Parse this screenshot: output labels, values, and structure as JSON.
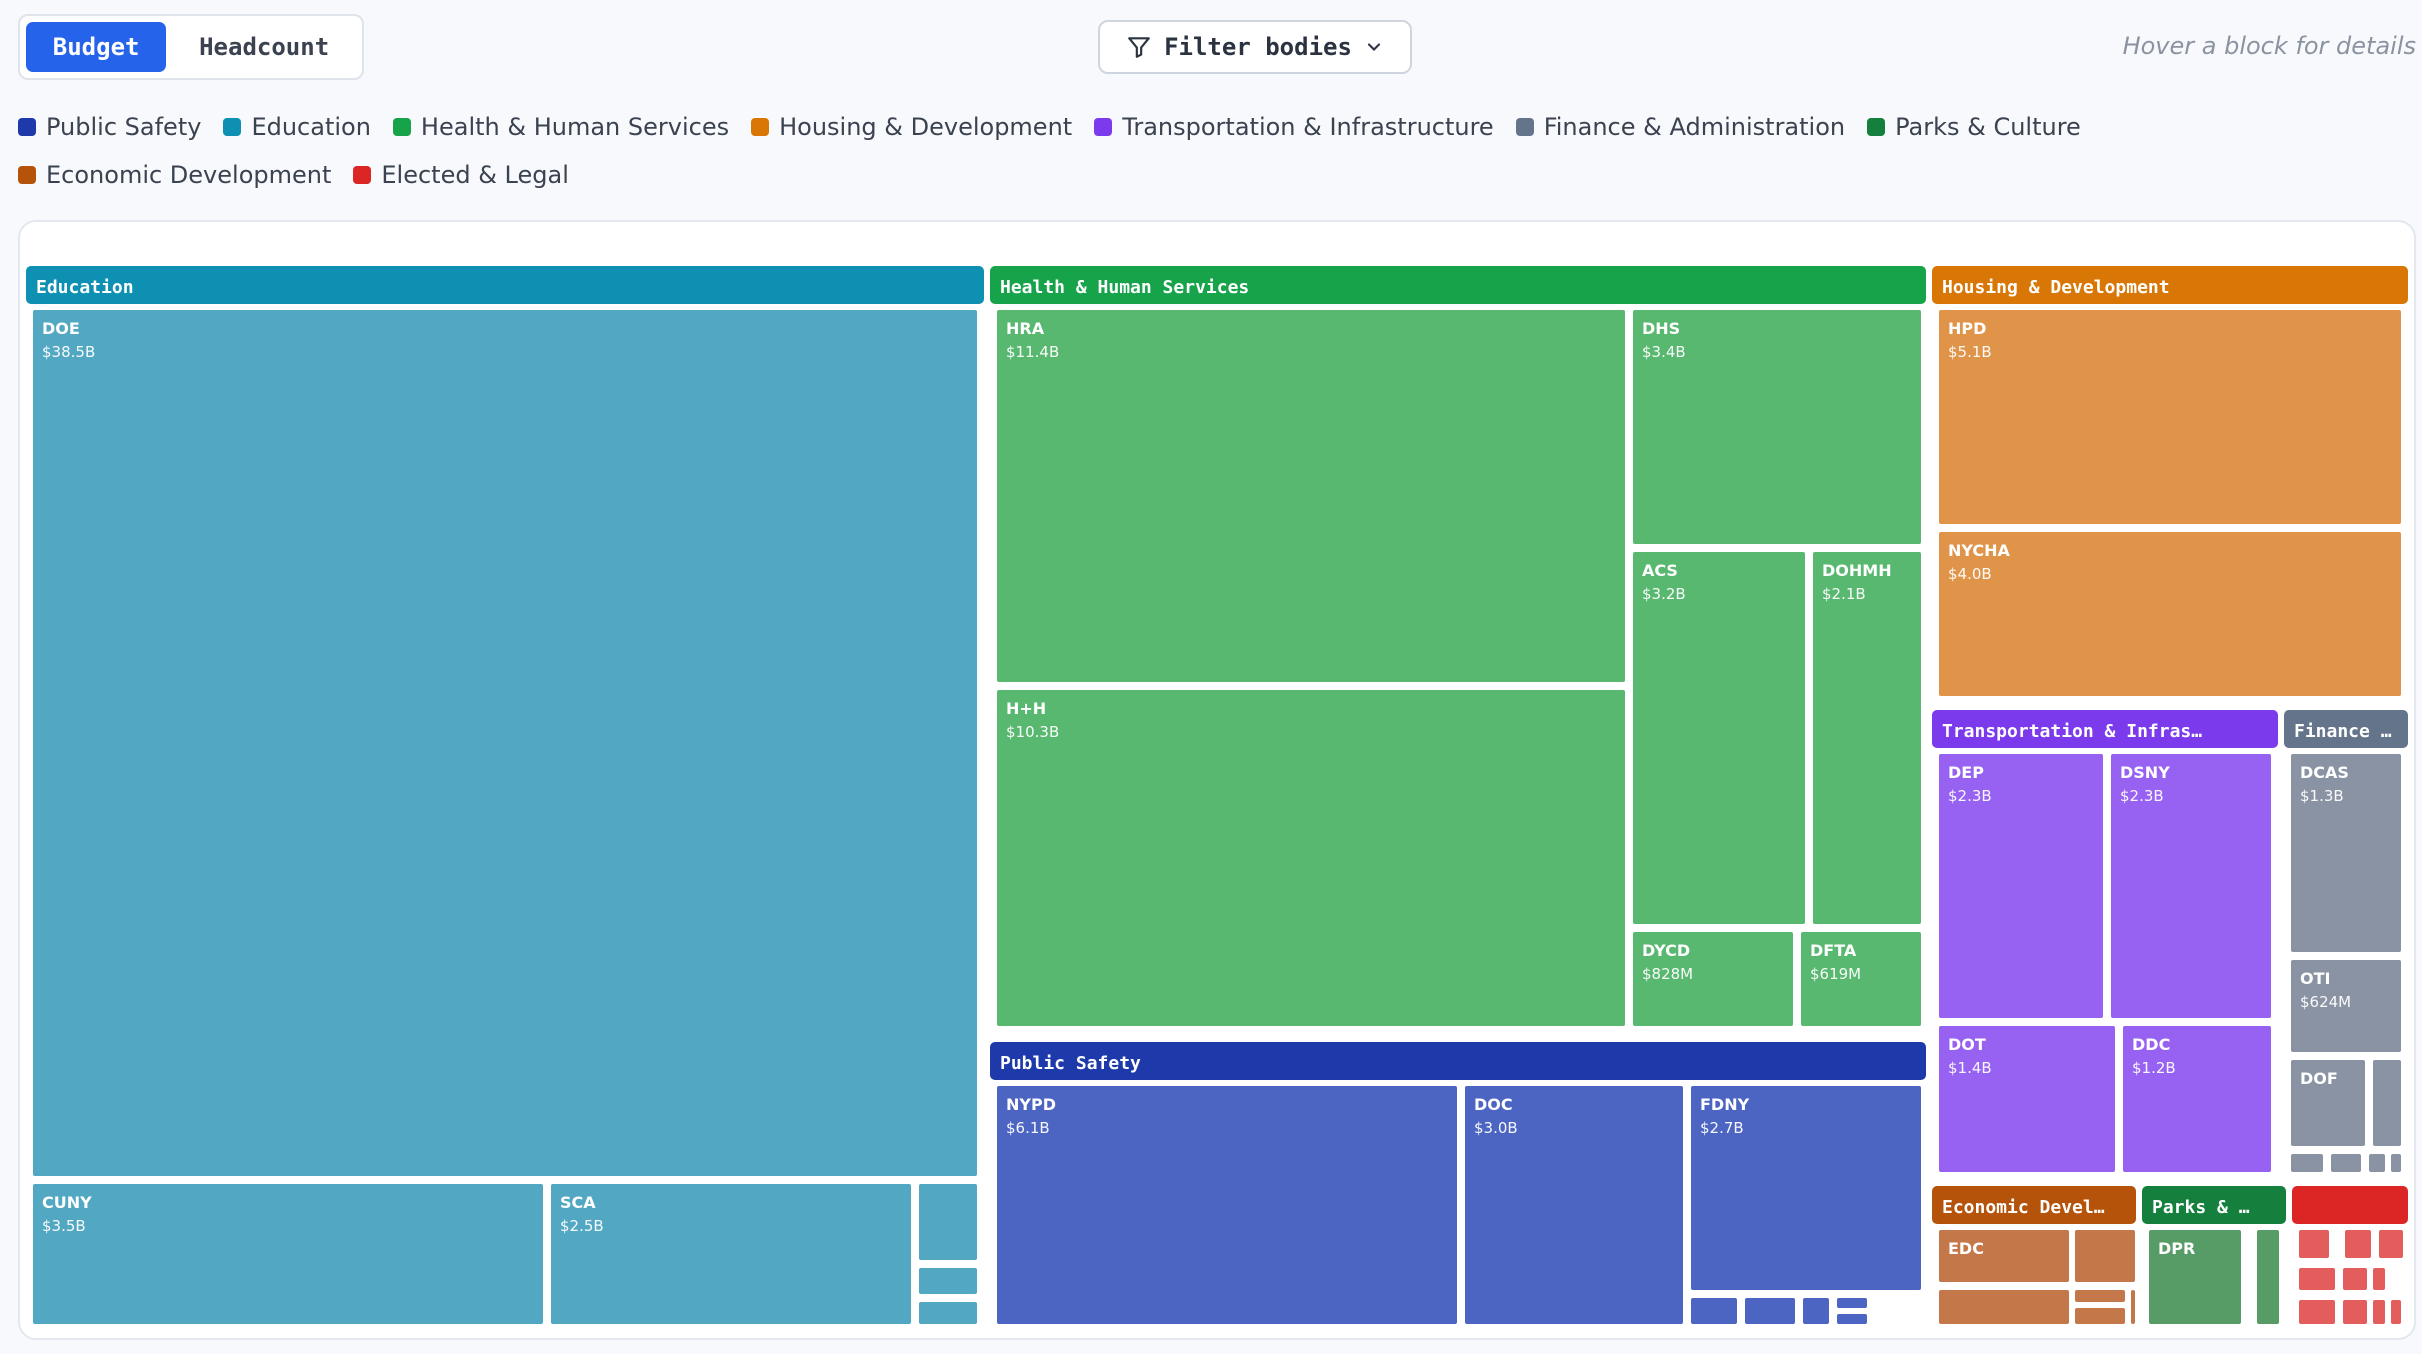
{
  "toggle": {
    "budget_label": "Budget",
    "headcount_label": "Headcount",
    "active": "budget"
  },
  "filter": {
    "label": "Filter bodies",
    "icon": "filter-icon"
  },
  "hint": "Hover a block for details",
  "legend": [
    {
      "label": "Public Safety",
      "color": "#1e3aaa"
    },
    {
      "label": "Education",
      "color": "#0e90b3"
    },
    {
      "label": "Health & Human Services",
      "color": "#16a34a"
    },
    {
      "label": "Housing & Development",
      "color": "#d97706"
    },
    {
      "label": "Transportation & Infrastructure",
      "color": "#7c3aed"
    },
    {
      "label": "Finance & Administration",
      "color": "#64748b"
    },
    {
      "label": "Parks & Culture",
      "color": "#15803d"
    },
    {
      "label": "Economic Development",
      "color": "#b45309"
    },
    {
      "label": "Elected & Legal",
      "color": "#dc2626"
    }
  ],
  "chart_data": {
    "type": "treemap",
    "metric": "Budget",
    "groups": [
      {
        "name": "Education",
        "color": "#0e90b3",
        "tile_color": "#52a7c3",
        "items": [
          {
            "name": "DOE",
            "value": "$38.5B",
            "v": 38.5
          },
          {
            "name": "CUNY",
            "value": "$3.5B",
            "v": 3.5
          },
          {
            "name": "SCA",
            "value": "$2.5B",
            "v": 2.5
          },
          {
            "name": "",
            "value": "",
            "v": 0.4
          },
          {
            "name": "",
            "value": "",
            "v": 0.12
          },
          {
            "name": "",
            "value": "",
            "v": 0.12
          }
        ]
      },
      {
        "name": "Health & Human Services",
        "color": "#16a34a",
        "tile_color": "#58b870",
        "items": [
          {
            "name": "HRA",
            "value": "$11.4B",
            "v": 11.4
          },
          {
            "name": "H+H",
            "value": "$10.3B",
            "v": 10.3
          },
          {
            "name": "DHS",
            "value": "$3.4B",
            "v": 3.4
          },
          {
            "name": "ACS",
            "value": "$3.2B",
            "v": 3.2
          },
          {
            "name": "DOHMH",
            "value": "$2.1B",
            "v": 2.1
          },
          {
            "name": "DYCD",
            "value": "$828M",
            "v": 0.828
          },
          {
            "name": "DFTA",
            "value": "$619M",
            "v": 0.619
          }
        ]
      },
      {
        "name": "Housing & Development",
        "color": "#d97706",
        "tile_color": "#e0944a",
        "items": [
          {
            "name": "HPD",
            "value": "$5.1B",
            "v": 5.1
          },
          {
            "name": "NYCHA",
            "value": "$4.0B",
            "v": 4.0
          }
        ]
      },
      {
        "name": "Transportation & Infras…",
        "color": "#7c3aed",
        "tile_color": "#9761f1",
        "items": [
          {
            "name": "DEP",
            "value": "$2.3B",
            "v": 2.3
          },
          {
            "name": "DSNY",
            "value": "$2.3B",
            "v": 2.3
          },
          {
            "name": "DOT",
            "value": "$1.4B",
            "v": 1.4
          },
          {
            "name": "DDC",
            "value": "$1.2B",
            "v": 1.2
          }
        ]
      },
      {
        "name": "Finance …",
        "color": "#64748b",
        "tile_color": "#8a93a3",
        "items": [
          {
            "name": "DCAS",
            "value": "$1.3B",
            "v": 1.3
          },
          {
            "name": "OTI",
            "value": "$624M",
            "v": 0.624
          },
          {
            "name": "DOF",
            "value": "",
            "v": 0.45
          },
          {
            "name": "",
            "value": "",
            "v": 0.1
          },
          {
            "name": "",
            "value": "",
            "v": 0.05
          },
          {
            "name": "",
            "value": "",
            "v": 0.05
          },
          {
            "name": "",
            "value": "",
            "v": 0.04
          },
          {
            "name": "",
            "value": "",
            "v": 0.03
          }
        ]
      },
      {
        "name": "Public Safety",
        "color": "#1e3aaa",
        "tile_color": "#4c64c2",
        "items": [
          {
            "name": "NYPD",
            "value": "$6.1B",
            "v": 6.1
          },
          {
            "name": "DOC",
            "value": "$3.0B",
            "v": 3.0
          },
          {
            "name": "FDNY",
            "value": "$2.7B",
            "v": 2.7
          },
          {
            "name": "",
            "value": "",
            "v": 0.25
          },
          {
            "name": "",
            "value": "",
            "v": 0.12
          },
          {
            "name": "",
            "value": "",
            "v": 0.08
          },
          {
            "name": "",
            "value": "",
            "v": 0.04
          },
          {
            "name": "",
            "value": "",
            "v": 0.04
          }
        ]
      },
      {
        "name": "Economic Devel…",
        "color": "#b45309",
        "tile_color": "#c4784a",
        "items": [
          {
            "name": "EDC",
            "value": "",
            "v": 0.35
          },
          {
            "name": "",
            "value": "",
            "v": 0.2
          },
          {
            "name": "",
            "value": "",
            "v": 0.15
          },
          {
            "name": "",
            "value": "",
            "v": 0.04
          },
          {
            "name": "",
            "value": "",
            "v": 0.04
          },
          {
            "name": "",
            "value": "",
            "v": 0.01
          }
        ]
      },
      {
        "name": "Parks & …",
        "color": "#15803d",
        "tile_color": "#579b66",
        "items": [
          {
            "name": "DPR",
            "value": "",
            "v": 0.4
          },
          {
            "name": "",
            "value": "",
            "v": 0.05
          }
        ]
      },
      {
        "name": "",
        "color": "#dc2626",
        "tile_color": "#e35d5d",
        "items": [
          {
            "name": "",
            "value": "",
            "v": 0.05
          },
          {
            "name": "",
            "value": "",
            "v": 0.05
          },
          {
            "name": "",
            "value": "",
            "v": 0.04
          },
          {
            "name": "",
            "value": "",
            "v": 0.05
          },
          {
            "name": "",
            "value": "",
            "v": 0.04
          },
          {
            "name": "",
            "value": "",
            "v": 0.02
          },
          {
            "name": "",
            "value": "",
            "v": 0.05
          },
          {
            "name": "",
            "value": "",
            "v": 0.04
          },
          {
            "name": "",
            "value": "",
            "v": 0.02
          },
          {
            "name": "",
            "value": "",
            "v": 0.01
          }
        ]
      }
    ]
  }
}
